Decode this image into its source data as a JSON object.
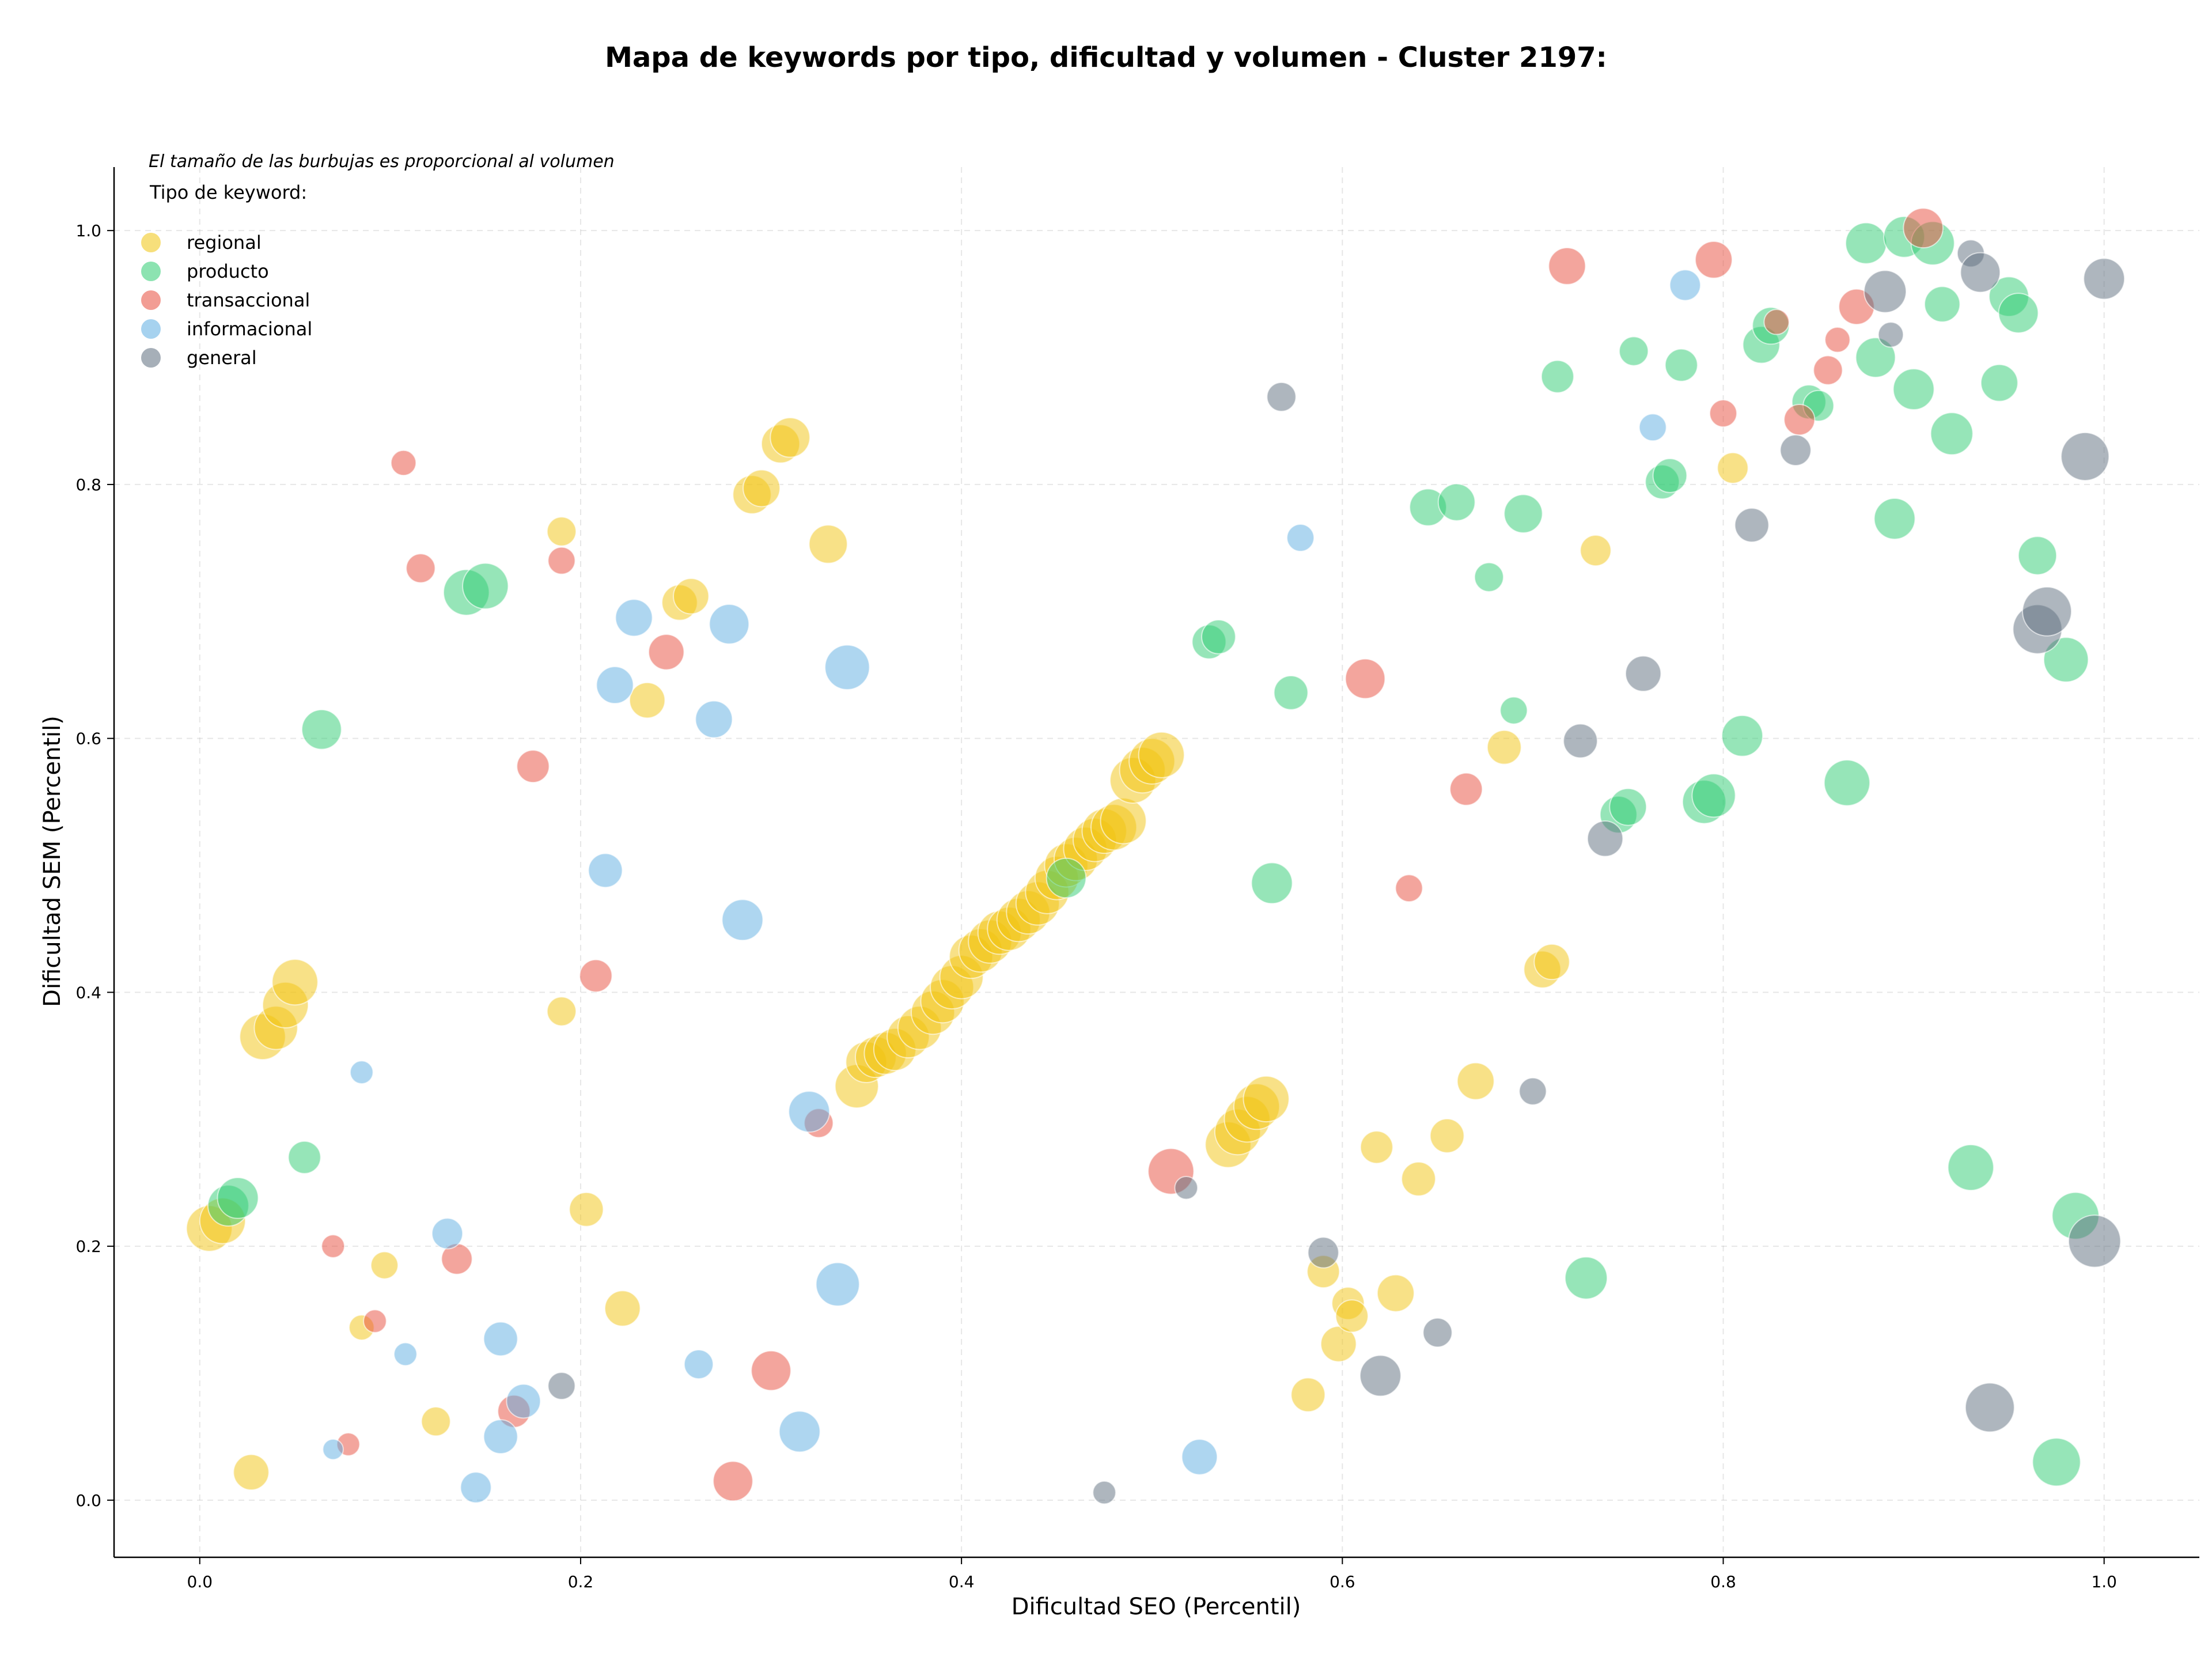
{
  "chart_data": {
    "type": "scatter",
    "title": "Mapa de keywords por tipo, dificultad y volumen - Cluster 2197:",
    "xlabel": "Dificultad SEO (Percentil)",
    "ylabel": "Dificultad SEM (Percentil)",
    "xlim": [
      -0.045,
      1.05
    ],
    "ylim": [
      -0.045,
      1.05
    ],
    "x_ticks": [
      "0.0",
      "0.2",
      "0.4",
      "0.6",
      "0.8",
      "1.0"
    ],
    "y_ticks": [
      "0.0",
      "0.2",
      "0.4",
      "0.6",
      "0.8",
      "1.0"
    ],
    "grid": true,
    "legend": {
      "placement": "top-left",
      "note": "El tamaño de las burbujas es proporcional al volumen",
      "title": "Tipo de keyword:"
    },
    "series": [
      {
        "name": "regional",
        "color": "#f1c40f",
        "points": [
          [
            0.005,
            0.214,
            2
          ],
          [
            0.012,
            0.22,
            2
          ],
          [
            0.027,
            0.022,
            1.2
          ],
          [
            0.033,
            0.365,
            2
          ],
          [
            0.04,
            0.372,
            1.8
          ],
          [
            0.045,
            0.39,
            2
          ],
          [
            0.05,
            0.408,
            2
          ],
          [
            0.085,
            0.136,
            0.6
          ],
          [
            0.097,
            0.185,
            0.7
          ],
          [
            0.124,
            0.062,
            0.8
          ],
          [
            0.19,
            0.763,
            0.8
          ],
          [
            0.19,
            0.385,
            0.8
          ],
          [
            0.203,
            0.229,
            1.1
          ],
          [
            0.222,
            0.151,
            1.2
          ],
          [
            0.235,
            0.63,
            1.2
          ],
          [
            0.252,
            0.707,
            1.2
          ],
          [
            0.258,
            0.712,
            1.2
          ],
          [
            0.29,
            0.792,
            1.4
          ],
          [
            0.295,
            0.797,
            1.3
          ],
          [
            0.305,
            0.832,
            1.4
          ],
          [
            0.31,
            0.837,
            1.5
          ],
          [
            0.33,
            0.753,
            1.4
          ],
          [
            0.345,
            0.326,
            1.8
          ],
          [
            0.35,
            0.345,
            1.6
          ],
          [
            0.355,
            0.349,
            1.6
          ],
          [
            0.36,
            0.352,
            1.7
          ],
          [
            0.365,
            0.355,
            1.7
          ],
          [
            0.372,
            0.365,
            1.7
          ],
          [
            0.378,
            0.372,
            1.8
          ],
          [
            0.385,
            0.384,
            1.8
          ],
          [
            0.39,
            0.393,
            1.8
          ],
          [
            0.395,
            0.404,
            1.8
          ],
          [
            0.4,
            0.412,
            1.8
          ],
          [
            0.405,
            0.428,
            1.8
          ],
          [
            0.41,
            0.433,
            1.8
          ],
          [
            0.415,
            0.44,
            1.8
          ],
          [
            0.42,
            0.447,
            1.8
          ],
          [
            0.425,
            0.45,
            1.8
          ],
          [
            0.43,
            0.457,
            1.8
          ],
          [
            0.435,
            0.463,
            1.8
          ],
          [
            0.44,
            0.47,
            1.8
          ],
          [
            0.445,
            0.479,
            1.8
          ],
          [
            0.45,
            0.49,
            1.8
          ],
          [
            0.455,
            0.5,
            1.8
          ],
          [
            0.46,
            0.505,
            1.8
          ],
          [
            0.465,
            0.513,
            1.8
          ],
          [
            0.47,
            0.52,
            1.8
          ],
          [
            0.475,
            0.527,
            1.9
          ],
          [
            0.48,
            0.53,
            2
          ],
          [
            0.485,
            0.535,
            2
          ],
          [
            0.49,
            0.567,
            2
          ],
          [
            0.495,
            0.575,
            2
          ],
          [
            0.5,
            0.582,
            2
          ],
          [
            0.505,
            0.587,
            2
          ],
          [
            0.54,
            0.28,
            2
          ],
          [
            0.545,
            0.29,
            2
          ],
          [
            0.55,
            0.3,
            2
          ],
          [
            0.555,
            0.31,
            2
          ],
          [
            0.56,
            0.316,
            2
          ],
          [
            0.582,
            0.083,
            1.1
          ],
          [
            0.59,
            0.18,
            1
          ],
          [
            0.598,
            0.123,
            1.2
          ],
          [
            0.603,
            0.155,
            1
          ],
          [
            0.605,
            0.145,
            1
          ],
          [
            0.628,
            0.163,
            1.3
          ],
          [
            0.618,
            0.278,
            1
          ],
          [
            0.64,
            0.253,
            1.1
          ],
          [
            0.655,
            0.287,
            1.1
          ],
          [
            0.67,
            0.33,
            1.3
          ],
          [
            0.685,
            0.593,
            1.1
          ],
          [
            0.705,
            0.418,
            1.3
          ],
          [
            0.71,
            0.424,
            1.2
          ],
          [
            0.733,
            0.748,
            0.9
          ],
          [
            0.805,
            0.813,
            0.9
          ]
        ]
      },
      {
        "name": "producto",
        "color": "#2ecc71",
        "points": [
          [
            0.015,
            0.232,
            1.6
          ],
          [
            0.02,
            0.238,
            1.6
          ],
          [
            0.055,
            0.27,
            1
          ],
          [
            0.064,
            0.607,
            1.5
          ],
          [
            0.14,
            0.715,
            2
          ],
          [
            0.15,
            0.72,
            2
          ],
          [
            0.455,
            0.49,
            1.5
          ],
          [
            0.53,
            0.676,
            1.1
          ],
          [
            0.535,
            0.68,
            1.1
          ],
          [
            0.563,
            0.486,
            1.6
          ],
          [
            0.573,
            0.636,
            1.1
          ],
          [
            0.645,
            0.782,
            1.3
          ],
          [
            0.66,
            0.786,
            1.3
          ],
          [
            0.677,
            0.727,
            0.8
          ],
          [
            0.69,
            0.622,
            0.7
          ],
          [
            0.695,
            0.777,
            1.4
          ],
          [
            0.713,
            0.885,
            1
          ],
          [
            0.728,
            0.175,
            1.7
          ],
          [
            0.745,
            0.54,
            1.3
          ],
          [
            0.75,
            0.546,
            1.3
          ],
          [
            0.753,
            0.905,
            0.8
          ],
          [
            0.768,
            0.802,
            1.1
          ],
          [
            0.772,
            0.807,
            1.1
          ],
          [
            0.778,
            0.894,
            1
          ],
          [
            0.79,
            0.55,
            1.8
          ],
          [
            0.795,
            0.555,
            1.8
          ],
          [
            0.81,
            0.602,
            1.6
          ],
          [
            0.82,
            0.91,
            1.3
          ],
          [
            0.825,
            0.925,
            1.3
          ],
          [
            0.845,
            0.865,
            1.1
          ],
          [
            0.85,
            0.862,
            0.9
          ],
          [
            0.865,
            0.565,
            2
          ],
          [
            0.875,
            0.99,
            1.6
          ],
          [
            0.88,
            0.9,
            1.5
          ],
          [
            0.89,
            0.773,
            1.6
          ],
          [
            0.895,
            0.995,
            1.6
          ],
          [
            0.9,
            0.875,
            1.6
          ],
          [
            0.91,
            0.99,
            1.8
          ],
          [
            0.915,
            0.942,
            1.2
          ],
          [
            0.92,
            0.84,
            1.7
          ],
          [
            0.93,
            0.262,
            2
          ],
          [
            0.945,
            0.88,
            1.3
          ],
          [
            0.95,
            0.948,
            1.5
          ],
          [
            0.955,
            0.935,
            1.5
          ],
          [
            0.965,
            0.744,
            1.4
          ],
          [
            0.975,
            0.03,
            2.2
          ],
          [
            0.98,
            0.662,
            1.9
          ],
          [
            0.985,
            0.224,
            2.1
          ]
        ]
      },
      {
        "name": "transaccional",
        "color": "#e74c3c",
        "points": [
          [
            0.07,
            0.2,
            0.5
          ],
          [
            0.078,
            0.044,
            0.5
          ],
          [
            0.092,
            0.141,
            0.5
          ],
          [
            0.107,
            0.817,
            0.6
          ],
          [
            0.116,
            0.734,
            0.8
          ],
          [
            0.135,
            0.19,
            0.9
          ],
          [
            0.165,
            0.07,
            1
          ],
          [
            0.175,
            0.578,
            1
          ],
          [
            0.19,
            0.74,
            0.7
          ],
          [
            0.208,
            0.413,
            1
          ],
          [
            0.245,
            0.668,
            1.2
          ],
          [
            0.28,
            0.015,
            1.5
          ],
          [
            0.3,
            0.102,
            1.5
          ],
          [
            0.325,
            0.297,
            0.8
          ],
          [
            0.51,
            0.259,
            2
          ],
          [
            0.612,
            0.647,
            1.5
          ],
          [
            0.635,
            0.482,
            0.7
          ],
          [
            0.665,
            0.56,
            1
          ],
          [
            0.718,
            0.972,
            1.3
          ],
          [
            0.795,
            0.977,
            1.3
          ],
          [
            0.8,
            0.856,
            0.7
          ],
          [
            0.828,
            0.928,
            0.6
          ],
          [
            0.84,
            0.851,
            0.9
          ],
          [
            0.855,
            0.89,
            0.8
          ],
          [
            0.86,
            0.914,
            0.6
          ],
          [
            0.87,
            0.94,
            1.2
          ],
          [
            0.905,
            1.002,
            1.5
          ]
        ]
      },
      {
        "name": "informacional",
        "color": "#5dade2",
        "points": [
          [
            0.07,
            0.04,
            0.4
          ],
          [
            0.085,
            0.337,
            0.5
          ],
          [
            0.108,
            0.115,
            0.5
          ],
          [
            0.13,
            0.21,
            0.9
          ],
          [
            0.145,
            0.01,
            0.9
          ],
          [
            0.158,
            0.05,
            1.1
          ],
          [
            0.158,
            0.127,
            1.1
          ],
          [
            0.17,
            0.078,
            1.1
          ],
          [
            0.213,
            0.496,
            1.1
          ],
          [
            0.218,
            0.642,
            1.3
          ],
          [
            0.228,
            0.695,
            1.3
          ],
          [
            0.262,
            0.107,
            0.8
          ],
          [
            0.27,
            0.615,
            1.3
          ],
          [
            0.278,
            0.69,
            1.5
          ],
          [
            0.285,
            0.457,
            1.6
          ],
          [
            0.315,
            0.054,
            1.6
          ],
          [
            0.32,
            0.306,
            1.6
          ],
          [
            0.335,
            0.17,
            1.8
          ],
          [
            0.34,
            0.656,
            1.9
          ],
          [
            0.525,
            0.034,
            1.2
          ],
          [
            0.578,
            0.758,
            0.7
          ],
          [
            0.763,
            0.845,
            0.7
          ],
          [
            0.78,
            0.957,
            0.9
          ]
        ]
      },
      {
        "name": "general",
        "color": "#5d6d7e",
        "points": [
          [
            0.19,
            0.09,
            0.7
          ],
          [
            0.475,
            0.006,
            0.5
          ],
          [
            0.518,
            0.246,
            0.5
          ],
          [
            0.568,
            0.869,
            0.8
          ],
          [
            0.59,
            0.195,
            0.9
          ],
          [
            0.62,
            0.098,
            1.6
          ],
          [
            0.65,
            0.132,
            0.8
          ],
          [
            0.7,
            0.322,
            0.7
          ],
          [
            0.725,
            0.598,
            1.1
          ],
          [
            0.738,
            0.521,
            1.2
          ],
          [
            0.758,
            0.651,
            1.2
          ],
          [
            0.815,
            0.768,
            1.1
          ],
          [
            0.838,
            0.827,
            0.9
          ],
          [
            0.885,
            0.952,
            1.7
          ],
          [
            0.888,
            0.918,
            0.6
          ],
          [
            0.93,
            0.982,
            0.7
          ],
          [
            0.935,
            0.967,
            1.5
          ],
          [
            0.94,
            0.073,
            2.3
          ],
          [
            0.965,
            0.686,
            2.3
          ],
          [
            0.97,
            0.7,
            2.3
          ],
          [
            0.99,
            0.822,
            2.2
          ],
          [
            0.995,
            0.204,
            2.6
          ],
          [
            1.0,
            0.962,
            1.6
          ]
        ]
      }
    ]
  }
}
